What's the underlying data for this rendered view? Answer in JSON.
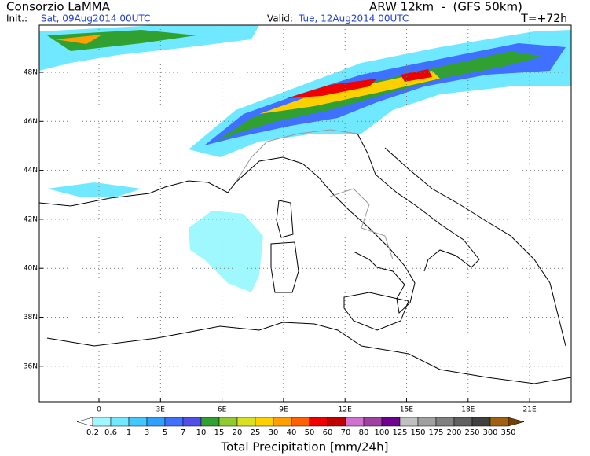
{
  "header": {
    "title": "Consorzio LaMMA",
    "model": "ARW 12km  -  (GFS 50km)",
    "init_label": "Init.:",
    "init": "Sat, 09Aug2014 00UTC",
    "valid_label": "Valid:",
    "valid": "Tue, 12Aug2014 00UTC",
    "lead": "T=+72h"
  },
  "map": {
    "lat_labels": [
      "48N",
      "46N",
      "44N",
      "42N",
      "40N",
      "38N",
      "36N"
    ],
    "lon_labels": [
      "0",
      "3E",
      "6E",
      "9E",
      "12E",
      "15E",
      "18E",
      "21E"
    ]
  },
  "colorbar": {
    "title": "Total Precipitation [mm/24h]",
    "levels": [
      0.2,
      0.6,
      1,
      3,
      5,
      7,
      10,
      15,
      20,
      25,
      30,
      40,
      50,
      60,
      70,
      80,
      100,
      125,
      150,
      175,
      200,
      250,
      300,
      350
    ],
    "colors": [
      "#ffffff",
      "#a0f8ff",
      "#70e8ff",
      "#40c8ff",
      "#30a0ff",
      "#4070ff",
      "#5050e8",
      "#30a030",
      "#90cc30",
      "#d8e020",
      "#ffd000",
      "#ffa000",
      "#ff6000",
      "#f00000",
      "#c00000",
      "#d070d0",
      "#a040a0",
      "#700090",
      "#c0c0c0",
      "#a0a0a0",
      "#808080",
      "#606060",
      "#404040",
      "#a06010",
      "#704000"
    ]
  }
}
